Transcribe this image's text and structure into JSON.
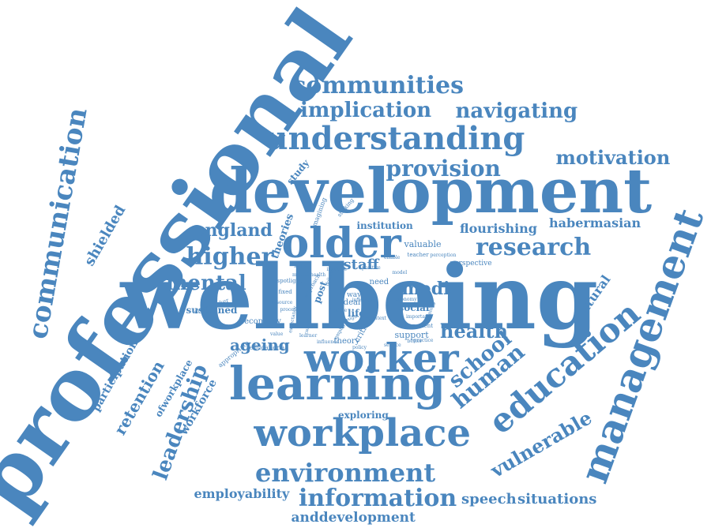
{
  "color": "#4a86be",
  "background": "#ffffff",
  "words": [
    "professional",
    "wellbeing",
    "development",
    "learning",
    "workplace",
    "worker",
    "management",
    "education",
    "communication",
    "understanding",
    "older",
    "communities",
    "implication",
    "navigating",
    "provision",
    "motivation",
    "research",
    "higher",
    "mental",
    "england",
    "environment",
    "information",
    "employability",
    "speech",
    "situations",
    "anddevelopment",
    "vulnerable",
    "human",
    "school",
    "health",
    "media",
    "staff",
    "ageing",
    "leadership",
    "retention",
    "participation",
    "shielded",
    "workforce",
    "ofworkplace",
    "flourishing",
    "habermasian",
    "cultural",
    "exploring",
    "institution",
    "theories",
    "study",
    "sustained",
    "secondary",
    "theory",
    "social",
    "life",
    "support",
    "critical",
    "post",
    "ideal",
    "need",
    "valuable",
    "perspective",
    "educational",
    "way",
    "engagement",
    "older worker",
    "teacher",
    "perception",
    "important",
    "imagining",
    "sticking",
    "appropriate",
    "approach",
    "spotlight",
    "fixed",
    "enable",
    "process",
    "expectancy",
    "career",
    "insight",
    "institute",
    "positive",
    "mental health",
    "holistic",
    "flexible",
    "context",
    "learner",
    "better",
    "meaning",
    "influence",
    "service",
    "policy",
    "practice",
    "value",
    "employee",
    "interaction",
    "economy",
    "resource",
    "skills",
    "model",
    "impact"
  ]
}
